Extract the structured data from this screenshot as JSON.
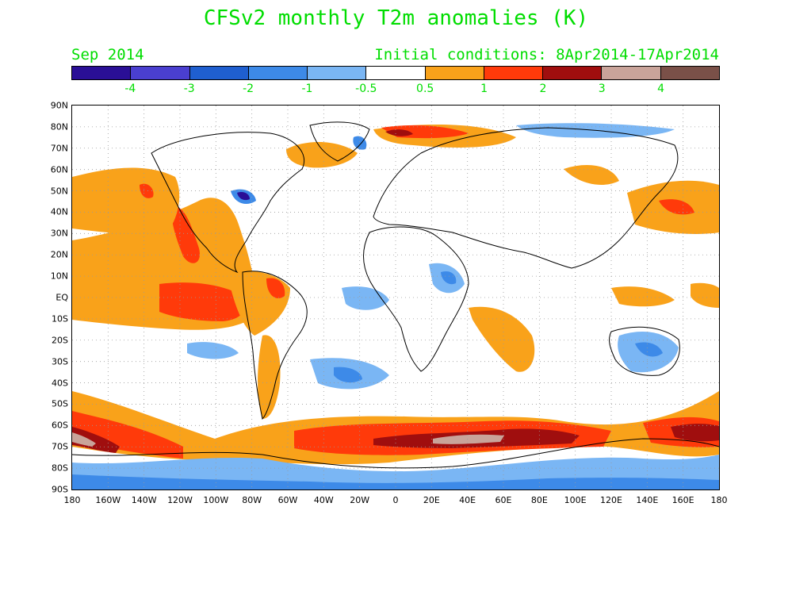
{
  "title": "CFSv2 monthly T2m anomalies (K)",
  "month": "Sep 2014",
  "initial_conditions": "Initial conditions: 8Apr2014-17Apr2014",
  "colorbar": {
    "colors": [
      "#2a0f96",
      "#4a3fd0",
      "#1f5fd0",
      "#3d8ae8",
      "#7ab6f4",
      "#ffffff",
      "#f9a21a",
      "#ff3a0a",
      "#a00e0e",
      "#c9a49a",
      "#7a5048"
    ],
    "labels": [
      "-4",
      "-3",
      "-2",
      "-1",
      "-0.5",
      "0.5",
      "1",
      "2",
      "3",
      "4"
    ]
  },
  "lat_labels": [
    "90N",
    "80N",
    "70N",
    "60N",
    "50N",
    "40N",
    "30N",
    "20N",
    "10N",
    "EQ",
    "10S",
    "20S",
    "30S",
    "40S",
    "50S",
    "60S",
    "70S",
    "80S",
    "90S"
  ],
  "lon_labels": [
    "180",
    "160W",
    "140W",
    "120W",
    "100W",
    "80W",
    "60W",
    "40W",
    "20W",
    "0",
    "20E",
    "40E",
    "60E",
    "80E",
    "100E",
    "120E",
    "140E",
    "160E",
    "180"
  ],
  "map_colors": {
    "land_outline": "#000000",
    "grid": "#9a9a9a",
    "warm_1": "#f9a21a",
    "warm_2": "#ff3a0a",
    "warm_3": "#a00e0e",
    "warm_4": "#c9a49a",
    "cool_1": "#7ab6f4",
    "cool_2": "#3d8ae8",
    "cool_3": "#1f5fd0",
    "cool_4": "#2a0f96"
  }
}
